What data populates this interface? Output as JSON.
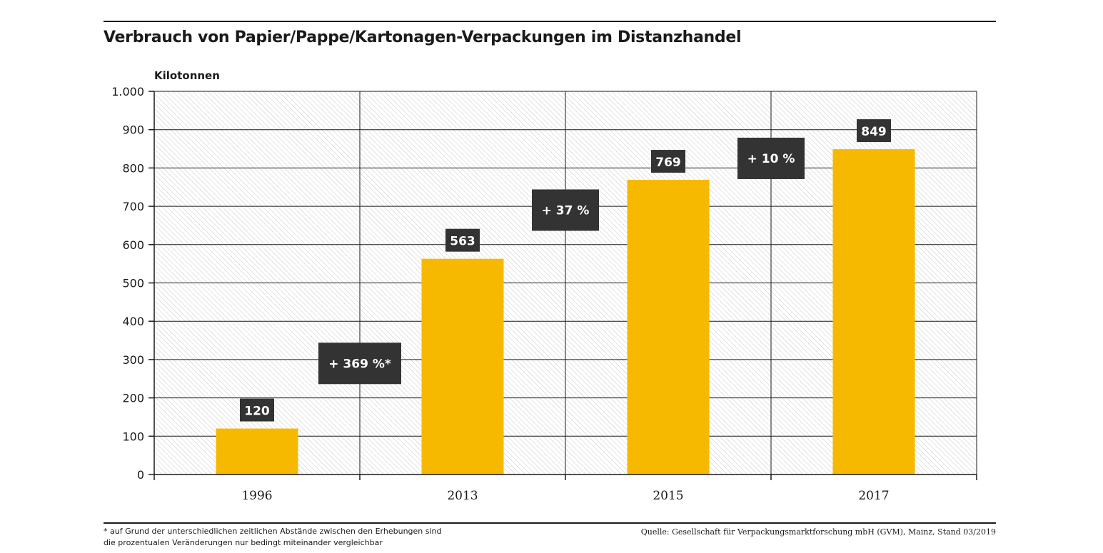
{
  "title": "Verbrauch von Papier/Pappe/Kartonagen-Verpackungen im Distanzhandel",
  "footnote": {
    "line1": "* auf Grund der unterschiedlichen zeitlichen Abstände zwischen den Erhebungen sind",
    "line2": "die prozentualen Veränderungen nur bedingt miteinander vergleichbar"
  },
  "source": "Quelle: Gesellschaft für Verpackungsmarktforschung mbH (GVM), Mainz, Stand 03/2019",
  "colors": {
    "bar": "#f7b900",
    "label_bg": "#333333",
    "label_text": "#ffffff",
    "grid": "#1a1a1a",
    "hatch": "#c8c8c8"
  },
  "chart_data": {
    "type": "bar",
    "title": "Verbrauch von Papier/Pappe/Kartonagen-Verpackungen im Distanzhandel",
    "ylabel": "Kilotonnen",
    "xlabel": "",
    "categories": [
      "1996",
      "2013",
      "2015",
      "2017"
    ],
    "values": [
      120,
      563,
      769,
      849
    ],
    "value_labels": [
      "120",
      "563",
      "769",
      "849"
    ],
    "ylim": [
      0,
      1000
    ],
    "yticks": [
      0,
      100,
      200,
      300,
      400,
      500,
      600,
      700,
      800,
      900,
      1000
    ],
    "ytick_labels": [
      "0",
      "100",
      "200",
      "300",
      "400",
      "500",
      "600",
      "700",
      "800",
      "900",
      "1.000"
    ],
    "grid": true,
    "change_annotations": [
      {
        "from": "1996",
        "to": "2013",
        "label": "+ 369 %*",
        "y_center": 290
      },
      {
        "from": "2013",
        "to": "2015",
        "label": "+ 37 %",
        "y_center": 690
      },
      {
        "from": "2015",
        "to": "2017",
        "label": "+ 10 %",
        "y_center": 825
      }
    ]
  }
}
